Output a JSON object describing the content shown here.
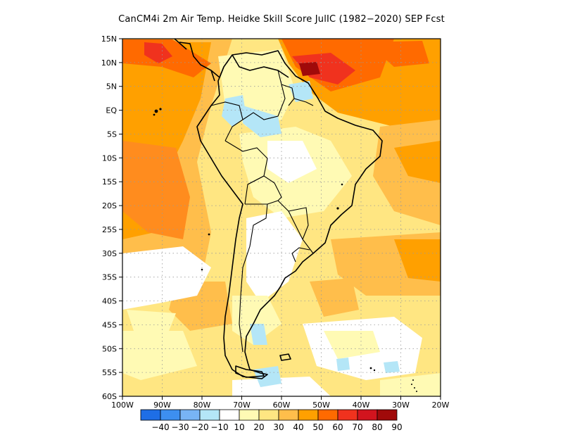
{
  "title": "CanCM4i  2m Air Temp. Heidke Skill Score JulIC (1982−2020) SEP Fcst",
  "map": {
    "lat_labels": [
      "15N",
      "10N",
      "5N",
      "EQ",
      "5S",
      "10S",
      "15S",
      "20S",
      "25S",
      "30S",
      "35S",
      "40S",
      "45S",
      "50S",
      "55S",
      "60S"
    ],
    "lat_values": [
      15,
      10,
      5,
      0,
      -5,
      -10,
      -15,
      -20,
      -25,
      -30,
      -35,
      -40,
      -45,
      -50,
      -55,
      -60
    ],
    "lon_labels": [
      "100W",
      "90W",
      "80W",
      "70W",
      "60W",
      "50W",
      "40W",
      "30W",
      "20W"
    ],
    "lon_values": [
      -100,
      -90,
      -80,
      -70,
      -60,
      -50,
      -40,
      -30,
      -20
    ],
    "lat_range": [
      -60,
      15
    ],
    "lon_range": [
      -100,
      -20
    ],
    "grid": true
  },
  "colorbar": {
    "labels": [
      "−40",
      "−30",
      "−20",
      "−10",
      "10",
      "20",
      "30",
      "40",
      "50",
      "60",
      "70",
      "80",
      "90"
    ],
    "colors": [
      "#1e6ee6",
      "#3d8ff0",
      "#78b4f5",
      "#b4e6f7",
      "#ffffff",
      "#fffab4",
      "#ffe682",
      "#ffbe4b",
      "#ffa000",
      "#ff6a00",
      "#f0321e",
      "#d2141e",
      "#a00a0a"
    ]
  }
}
